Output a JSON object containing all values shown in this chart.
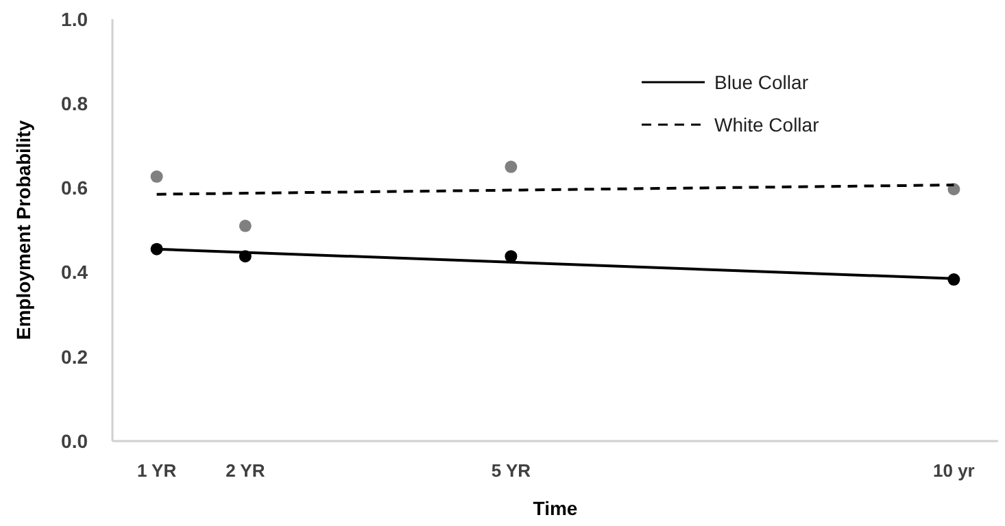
{
  "chart_data": {
    "type": "scatter",
    "xlabel": "Time",
    "ylabel": "Employment Probability",
    "xlim": [
      0.5,
      10.5
    ],
    "ylim": [
      0,
      1
    ],
    "xticks": [
      {
        "value": 1,
        "label": "1 YR"
      },
      {
        "value": 2,
        "label": "2 YR"
      },
      {
        "value": 5,
        "label": "5 YR"
      },
      {
        "value": 10,
        "label": "10 yr"
      }
    ],
    "yticks": [
      {
        "value": 0,
        "label": "0.0"
      },
      {
        "value": 0.2,
        "label": "0.2"
      },
      {
        "value": 0.4,
        "label": "0.4"
      },
      {
        "value": 0.6,
        "label": "0.6"
      },
      {
        "value": 0.8,
        "label": "0.8"
      },
      {
        "value": 1,
        "label": "1.0"
      }
    ],
    "grid": false,
    "legend": "top right",
    "marker": "circle",
    "series": [
      {
        "color": "#000000",
        "x": [
          1,
          2,
          5,
          10
        ],
        "values": [
          0.455,
          0.438,
          0.438,
          0.383
        ]
      },
      {
        "color": "#808080",
        "x": [
          1,
          2,
          5,
          10
        ],
        "values": [
          0.627,
          0.51,
          0.65,
          0.597
        ]
      },
      {
        "type": "line",
        "name": "Blue Collar",
        "color": "#000000",
        "line_style": "solid",
        "marker": "none",
        "x": [
          1,
          10
        ],
        "values": [
          0.455,
          0.385
        ]
      },
      {
        "type": "line",
        "name": "White Collar",
        "color": "#000000",
        "line_style": "dashed",
        "marker": "none",
        "x": [
          1,
          10
        ],
        "values": [
          0.585,
          0.607
        ]
      }
    ]
  }
}
